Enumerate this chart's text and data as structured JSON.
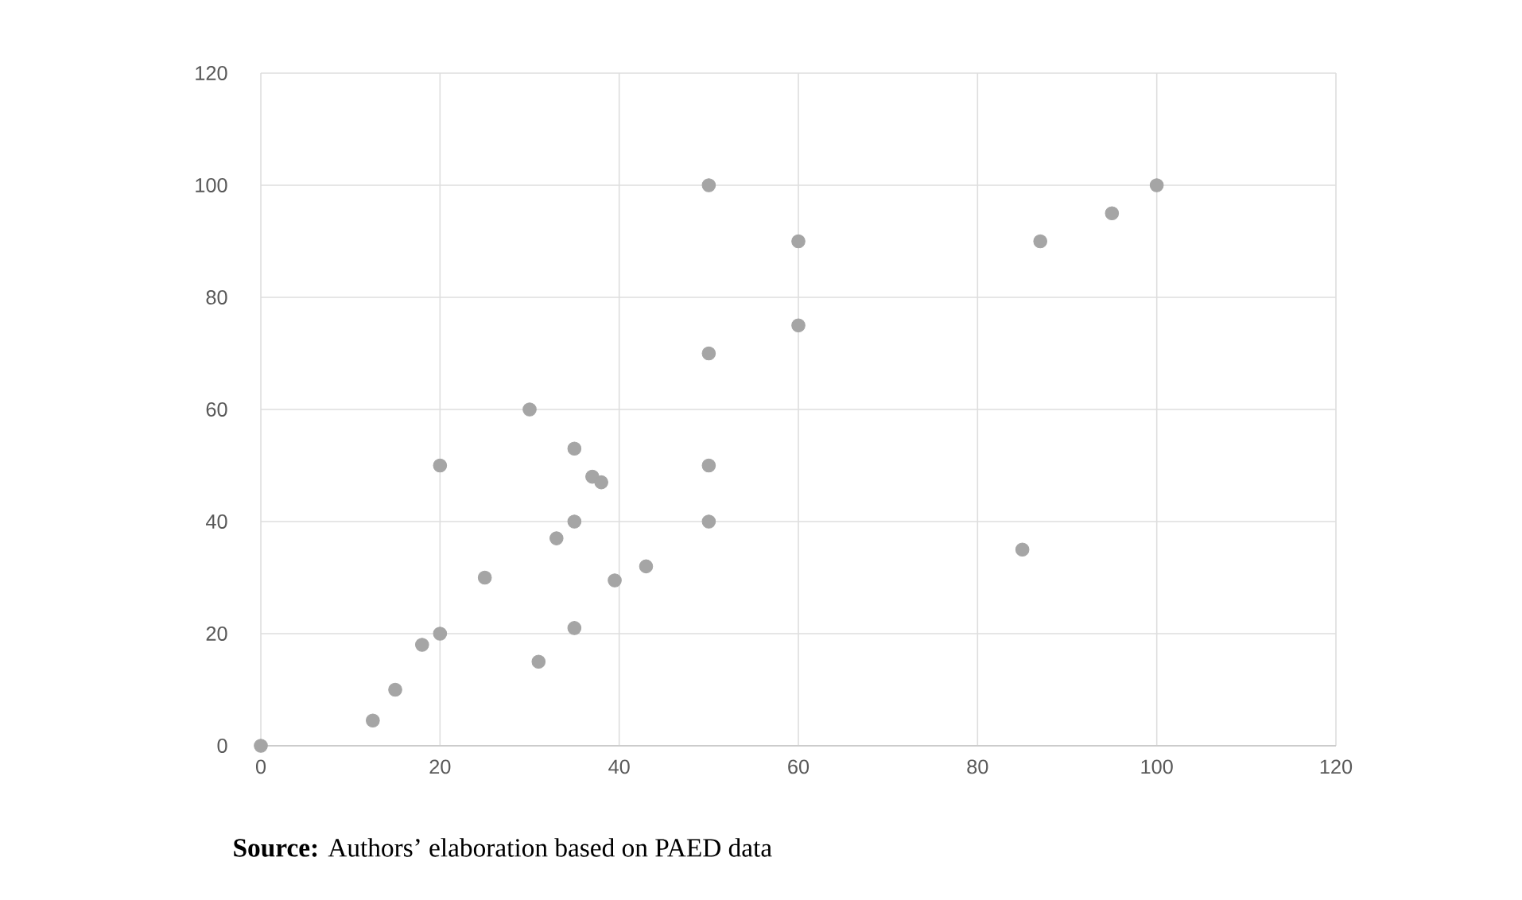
{
  "chart_data": {
    "type": "scatter",
    "x": [
      0,
      12.5,
      15,
      18,
      20,
      20,
      25,
      30,
      31,
      33,
      35,
      35,
      35,
      37,
      38,
      39.5,
      43,
      50,
      50,
      50,
      50,
      60,
      60,
      85,
      87,
      95,
      100
    ],
    "series": [
      {
        "color": "#a5a5a5",
        "values": [
          0,
          4.5,
          10,
          18,
          20,
          50,
          30,
          60,
          15,
          37,
          53,
          40,
          21,
          48,
          47,
          29.5,
          32,
          100,
          70,
          50,
          40,
          90,
          75,
          35,
          90,
          95,
          100
        ]
      }
    ],
    "xlim": [
      0,
      120
    ],
    "ylim": [
      0,
      120
    ],
    "xticks": [
      0,
      20,
      40,
      60,
      80,
      100,
      120
    ],
    "yticks": [
      0,
      20,
      40,
      60,
      80,
      100,
      120
    ],
    "grid": true,
    "marker": "circle",
    "annotations": [
      "**Source:** Authors’ elaboration based on PAED data"
    ]
  }
}
